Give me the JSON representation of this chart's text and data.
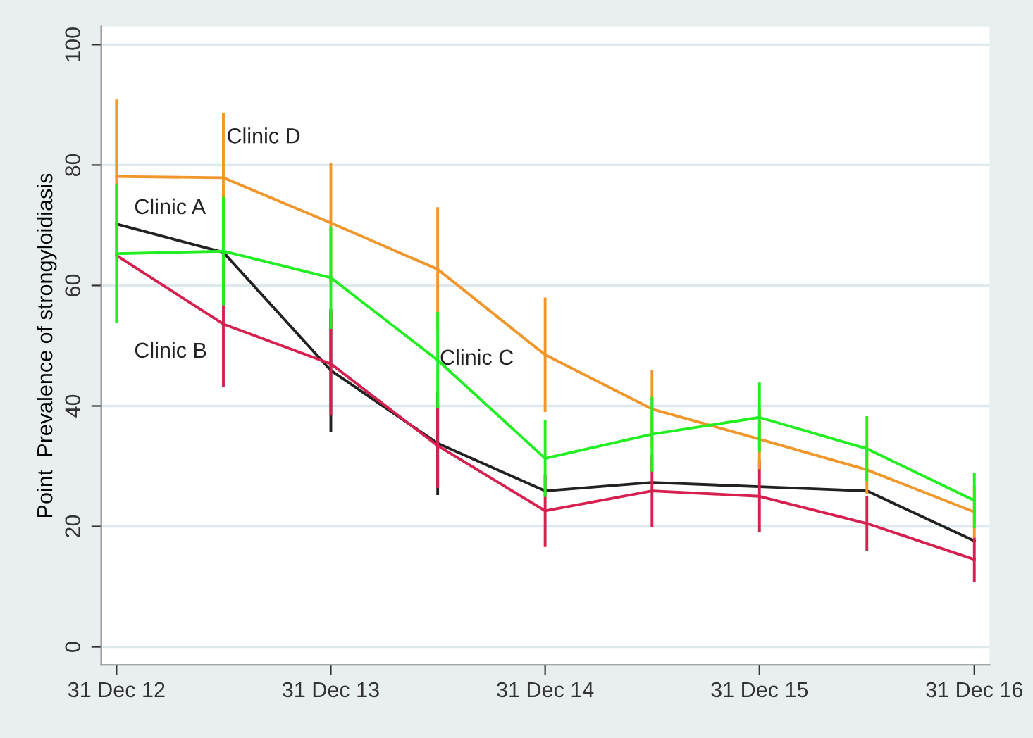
{
  "chart_data": {
    "type": "line",
    "ylabel": "Point  Prevalence of strongyloidiasis",
    "x": [
      "2012-12-31",
      "2013-07-01",
      "2013-12-31",
      "2014-07-01",
      "2014-12-31",
      "2015-07-01",
      "2015-12-31",
      "2016-07-01",
      "2016-12-31"
    ],
    "series": [
      {
        "name": "Clinic A",
        "color": "#222222",
        "values": [
          70.2,
          65.5,
          45.9,
          33.8,
          25.9,
          27.3,
          26.6,
          25.9,
          17.6
        ],
        "errors": [
          null,
          null,
          10.2,
          8.6,
          null,
          null,
          null,
          null,
          null
        ]
      },
      {
        "name": "Clinic B",
        "color": "#d6204f",
        "values": [
          65.0,
          53.6,
          47.0,
          33.4,
          22.6,
          25.9,
          25.0,
          20.5,
          14.5
        ],
        "errors": [
          null,
          10.5,
          8.6,
          7,
          6,
          6,
          6,
          4.6,
          3.8
        ]
      },
      {
        "name": "Clinic D",
        "color": "#f0962a",
        "values": [
          78.1,
          77.9,
          70.4,
          62.7,
          48.5,
          39.5,
          34.5,
          29.4,
          22.4
        ],
        "errors": [
          12.8,
          10.7,
          10,
          10.3,
          9.5,
          6.4,
          5,
          4,
          4.3
        ]
      },
      {
        "name": "Clinic C",
        "color": "#22ee22",
        "values": [
          65.3,
          65.7,
          61.3,
          47.6,
          31.3,
          35.3,
          38.1,
          32.9,
          24.3
        ],
        "errors": [
          11.5,
          9,
          8.5,
          8,
          6.4,
          6.2,
          5.8,
          5.4,
          4.6
        ]
      }
    ],
    "xlim": [
      "2012-12-05",
      "2017-01-26"
    ],
    "xticks": [
      {
        "value": "2012-12-31",
        "label": "31 Dec 12"
      },
      {
        "value": "2013-12-31",
        "label": "31 Dec 13"
      },
      {
        "value": "2014-12-31",
        "label": "31 Dec 14"
      },
      {
        "value": "2015-12-31",
        "label": "31 Dec 15"
      },
      {
        "value": "2016-12-31",
        "label": "31 Dec 16"
      }
    ],
    "ylim": [
      -3,
      103
    ],
    "yticks": [
      0,
      20,
      40,
      60,
      80,
      100
    ],
    "grid": "y",
    "legend": false,
    "marker": "none",
    "line_style": "solid"
  }
}
